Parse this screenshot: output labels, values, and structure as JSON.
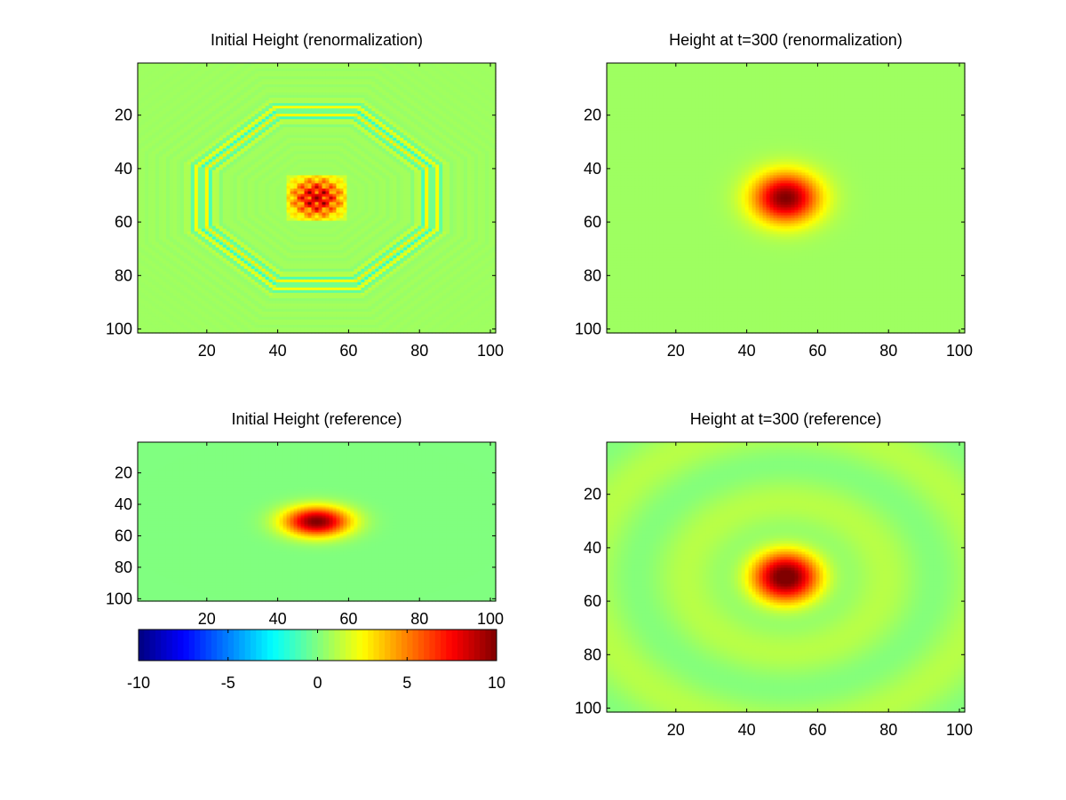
{
  "chart_data": [
    {
      "type": "heatmap",
      "title": "Initial Height (renormalization)",
      "xlabel": "",
      "ylabel": "",
      "xlim": [
        1,
        101
      ],
      "ylim": [
        1,
        101
      ],
      "y_direction": "down",
      "xticks": [
        20,
        40,
        60,
        80,
        100
      ],
      "yticks": [
        20,
        40,
        60,
        80,
        100
      ],
      "colormap": "jet",
      "clim": [
        -10,
        10
      ],
      "field": {
        "kind": "central_bump_with_ripples",
        "center": [
          51,
          51
        ],
        "peak_value": 10,
        "ripple_amplitude": 2,
        "ripple_bands_x": [
          20,
          83
        ],
        "ripple_bands_y": [
          21,
          81
        ]
      }
    },
    {
      "type": "heatmap",
      "title": "Height at t=300 (renormalization)",
      "xlabel": "",
      "ylabel": "",
      "xlim": [
        1,
        101
      ],
      "ylim": [
        1,
        101
      ],
      "y_direction": "down",
      "xticks": [
        20,
        40,
        60,
        80,
        100
      ],
      "yticks": [
        20,
        40,
        60,
        80,
        100
      ],
      "colormap": "jet",
      "clim": [
        -10,
        10
      ],
      "field": {
        "kind": "smooth_bump",
        "center": [
          51,
          51
        ],
        "peak_value": 10,
        "background_value": 0.6
      }
    },
    {
      "type": "heatmap",
      "title": "Initial Height (reference)",
      "xlabel": "",
      "ylabel": "",
      "xlim": [
        1,
        101
      ],
      "ylim": [
        1,
        101
      ],
      "y_direction": "down",
      "xticks": [
        20,
        40,
        60,
        80,
        100
      ],
      "yticks": [
        20,
        40,
        60,
        80,
        100
      ],
      "colormap": "jet",
      "clim": [
        -10,
        10
      ],
      "field": {
        "kind": "smooth_bump",
        "center": [
          51,
          51
        ],
        "peak_value": 10,
        "background_value": 0
      }
    },
    {
      "type": "heatmap",
      "title": "Height at t=300 (reference)",
      "xlabel": "",
      "ylabel": "",
      "xlim": [
        1,
        101
      ],
      "ylim": [
        1,
        101
      ],
      "y_direction": "down",
      "xticks": [
        20,
        40,
        60,
        80,
        100
      ],
      "yticks": [
        20,
        40,
        60,
        80,
        100
      ],
      "colormap": "jet",
      "clim": [
        -10,
        10
      ],
      "field": {
        "kind": "bump_with_rings",
        "center": [
          51,
          51
        ],
        "peak_value": 10,
        "ring_wavelength": 28,
        "ring_amplitude": 0.5
      }
    }
  ],
  "colorbar": {
    "colormap": "jet",
    "range": [
      -10,
      10
    ],
    "ticks": [
      "-10",
      "-5",
      "0",
      "5",
      "10"
    ]
  }
}
